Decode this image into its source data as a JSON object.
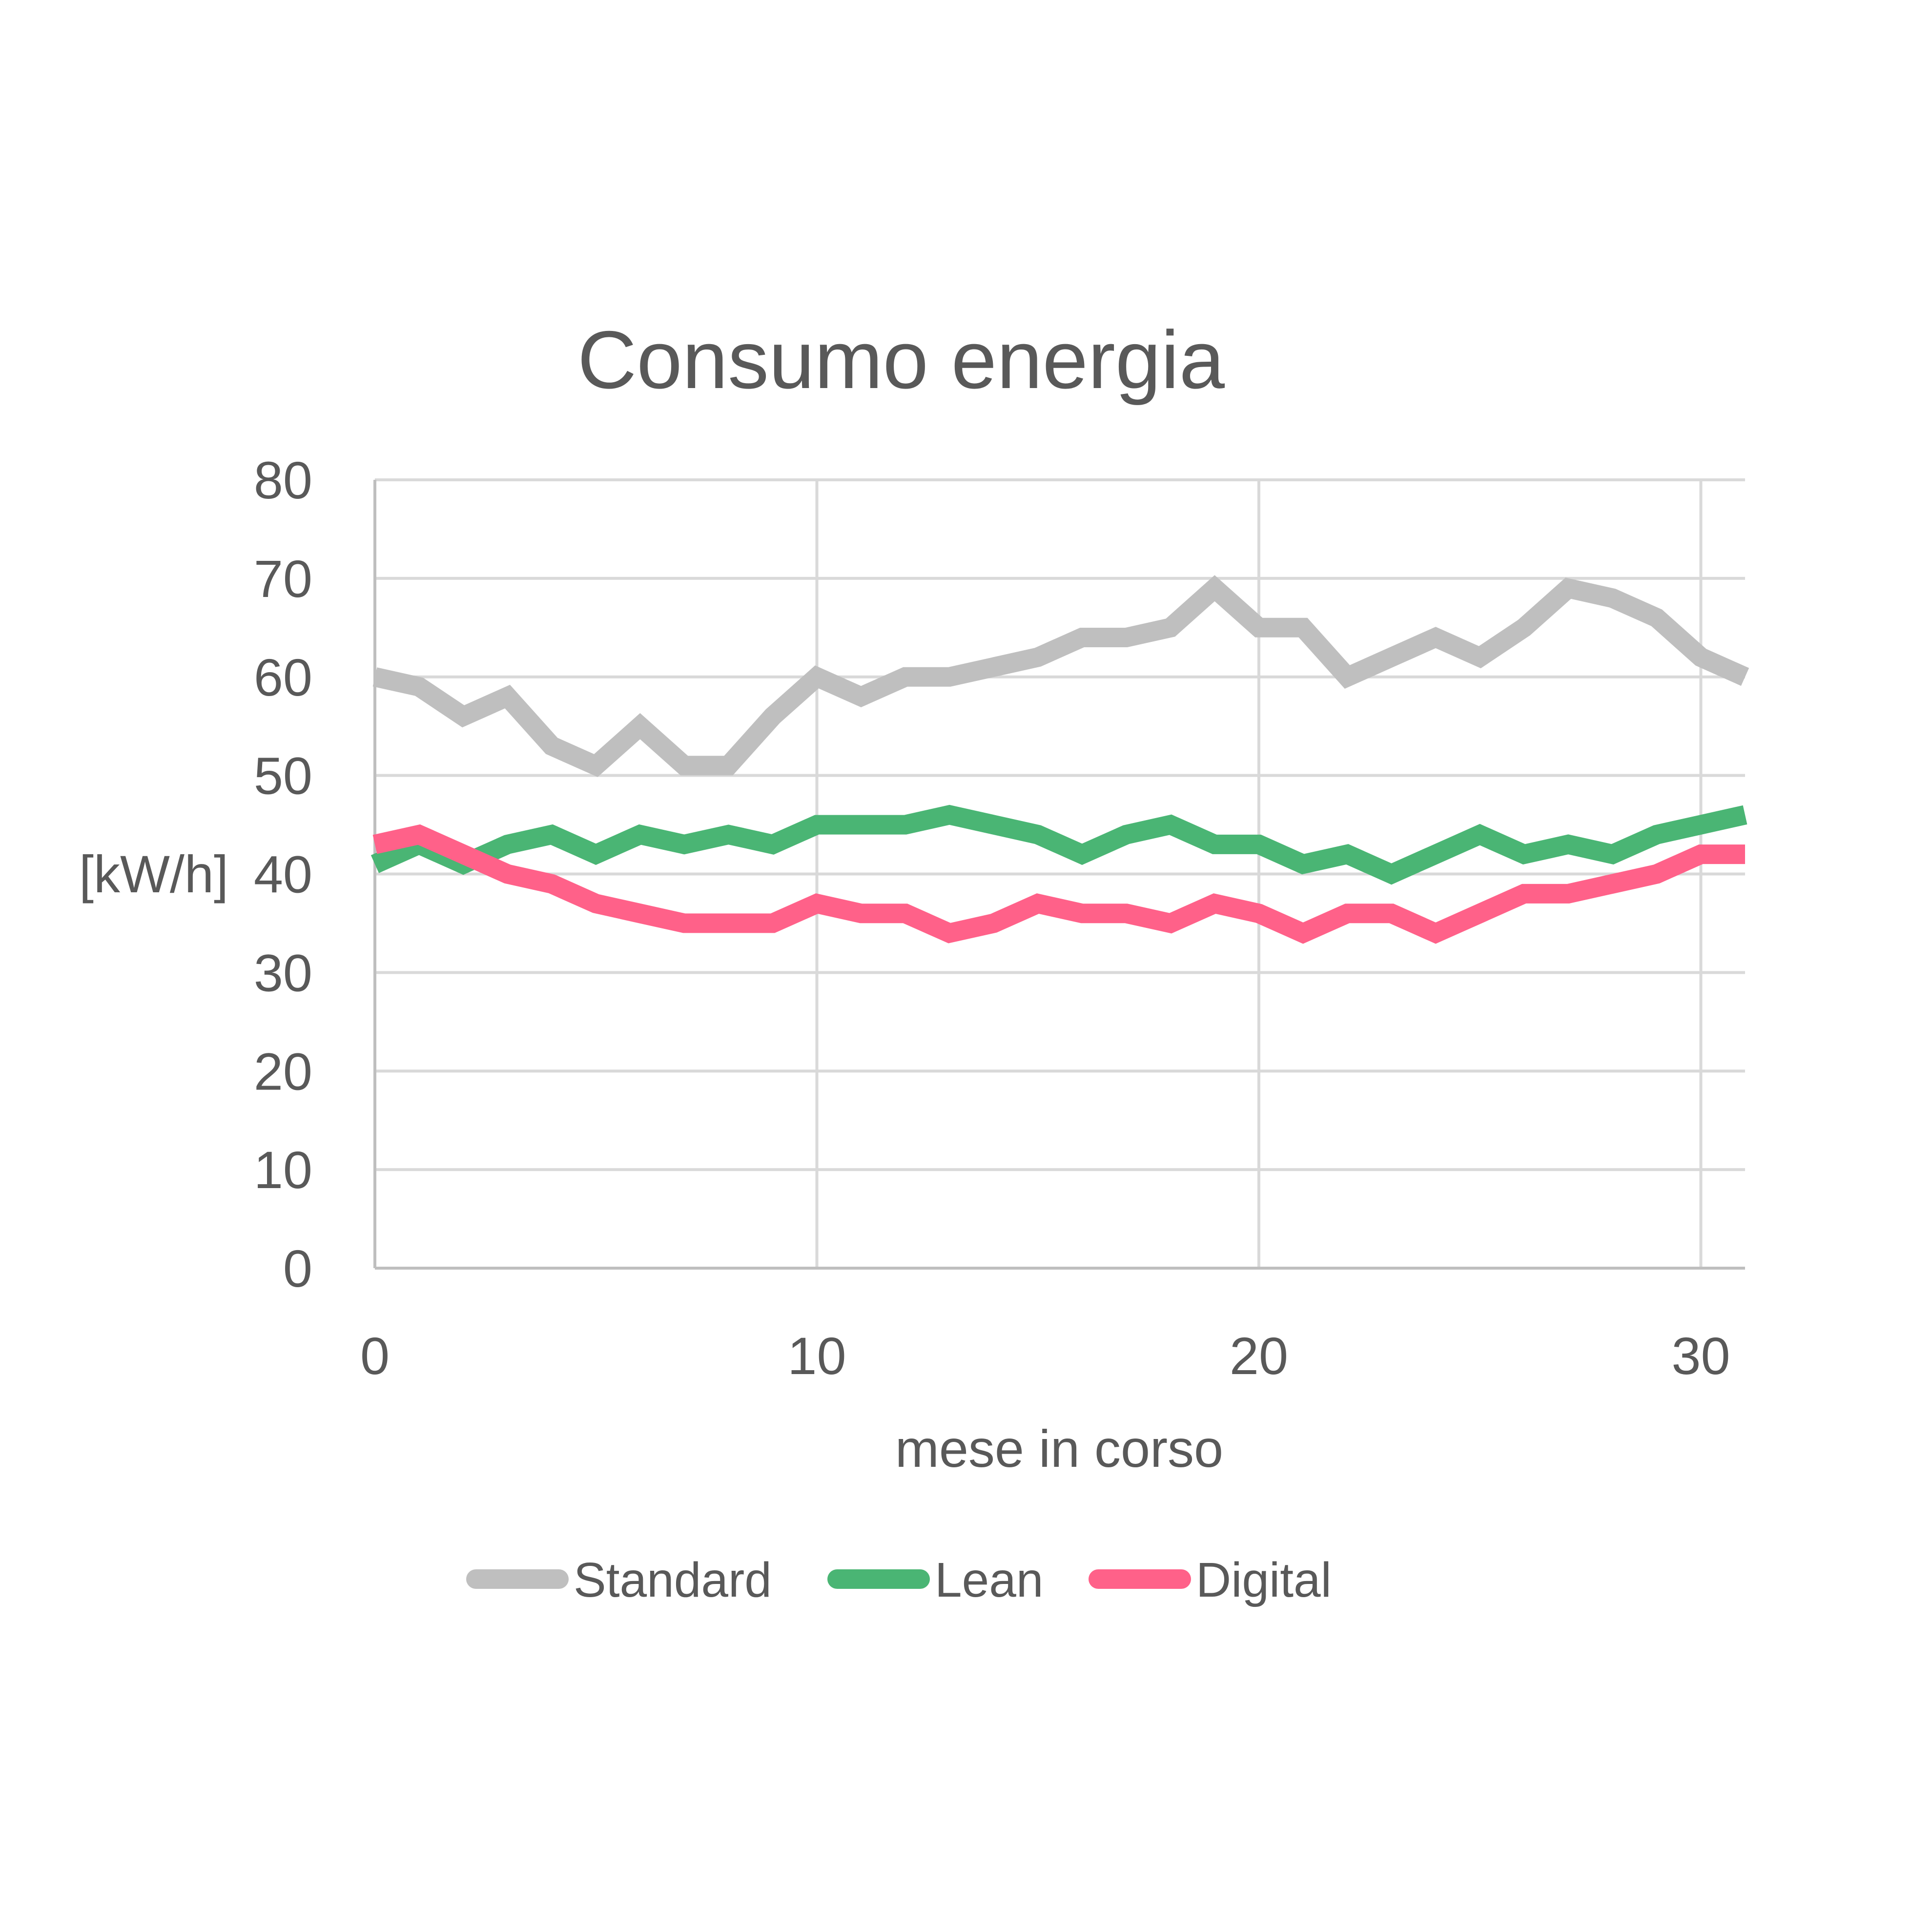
{
  "chart_data": {
    "type": "line",
    "title": "Consumo energia",
    "xlabel": "mese in corso",
    "ylabel": "[kW/h]",
    "xlim": [
      0,
      31
    ],
    "ylim": [
      0,
      80
    ],
    "xticks": [
      0,
      10,
      20,
      30
    ],
    "yticks": [
      0,
      10,
      20,
      30,
      40,
      50,
      60,
      70,
      80
    ],
    "grid": true,
    "legend_position": "bottom",
    "x": [
      0,
      1,
      2,
      3,
      4,
      5,
      6,
      7,
      8,
      9,
      10,
      11,
      12,
      13,
      14,
      15,
      16,
      17,
      18,
      19,
      20,
      21,
      22,
      23,
      24,
      25,
      26,
      27,
      28,
      29,
      30,
      31
    ],
    "series": [
      {
        "name": "Standard",
        "color": "#bfbfbf",
        "values": [
          60,
          59,
          56,
          58,
          53,
          51,
          55,
          51,
          51,
          56,
          60,
          58,
          60,
          60,
          61,
          62,
          64,
          64,
          65,
          69,
          65,
          65,
          60,
          62,
          64,
          62,
          65,
          69,
          68,
          66,
          62,
          60
        ]
      },
      {
        "name": "Lean",
        "color": "#4ab574",
        "values": [
          41,
          43,
          41,
          43,
          44,
          42,
          44,
          43,
          44,
          43,
          45,
          45,
          45,
          46,
          45,
          44,
          42,
          44,
          45,
          43,
          43,
          41,
          42,
          40,
          42,
          44,
          42,
          43,
          42,
          44,
          45,
          46
        ]
      },
      {
        "name": "Digital",
        "color": "#ff6189",
        "values": [
          43,
          44,
          42,
          40,
          39,
          37,
          36,
          35,
          35,
          35,
          37,
          36,
          36,
          34,
          35,
          37,
          36,
          36,
          35,
          37,
          36,
          34,
          36,
          36,
          34,
          36,
          38,
          38,
          39,
          40,
          42,
          42
        ]
      }
    ]
  }
}
